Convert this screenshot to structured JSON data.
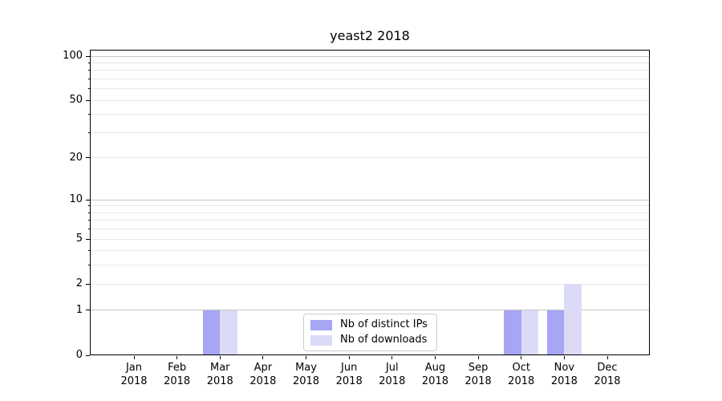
{
  "chart_data": {
    "type": "bar",
    "title": "yeast2 2018",
    "categories": [
      "Jan",
      "Feb",
      "Mar",
      "Apr",
      "May",
      "Jun",
      "Jul",
      "Aug",
      "Sep",
      "Oct",
      "Nov",
      "Dec"
    ],
    "category_year": "2018",
    "series": [
      {
        "name": "Nb of distinct IPs",
        "color": "#a6a6f4",
        "values": [
          0,
          0,
          1,
          0,
          0,
          0,
          0,
          0,
          0,
          1,
          1,
          0
        ]
      },
      {
        "name": "Nb of downloads",
        "color": "#dbdbf8",
        "values": [
          0,
          0,
          1,
          0,
          0,
          0,
          0,
          0,
          0,
          1,
          2,
          0
        ]
      }
    ],
    "y_scale": "log1p",
    "y_axis": {
      "ticks": [
        0,
        1,
        2,
        5,
        10,
        20,
        50,
        100
      ],
      "minor_ticks": [
        3,
        4,
        6,
        7,
        8,
        9,
        30,
        40,
        60,
        70,
        80,
        90
      ],
      "decade_ticks": [
        1,
        10,
        100
      ],
      "ylim": [
        0,
        110
      ]
    },
    "xlabel": "",
    "ylabel": "",
    "grid": {
      "major_color": "#c6c6c6",
      "minor_color": "#e9e9e9",
      "on": true
    },
    "legend": {
      "position": "lower-center"
    },
    "colors": {
      "spine": "#000000",
      "background": "#ffffff",
      "text": "#000000"
    }
  }
}
